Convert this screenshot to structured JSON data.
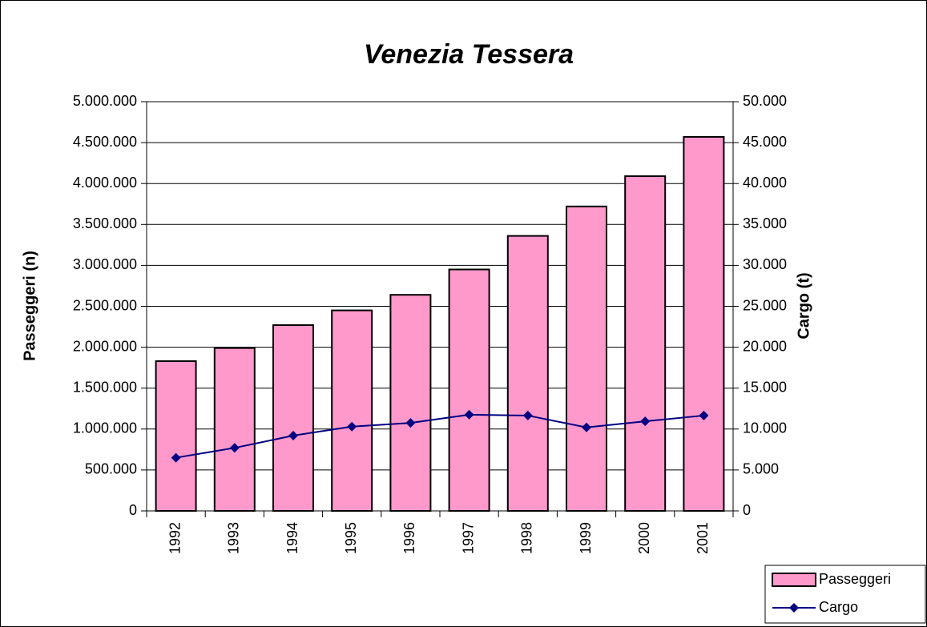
{
  "chart_data": {
    "type": "bar_line",
    "title": "Venezia Tessera",
    "y_label": "Passeggeri (n)",
    "y2_label": "Cargo (t)",
    "categories": [
      "1992",
      "1993",
      "1994",
      "1995",
      "1996",
      "1997",
      "1998",
      "1999",
      "2000",
      "2001"
    ],
    "series": [
      {
        "name": "Passeggeri",
        "type": "bar",
        "color": "#ff99cc",
        "values": [
          1830000,
          1990000,
          2270000,
          2450000,
          2640000,
          2950000,
          3360000,
          3720000,
          4090000,
          4570000
        ]
      },
      {
        "name": "Cargo",
        "type": "line",
        "axis": "y2",
        "color": "#000080",
        "values": [
          6500,
          7700,
          9200,
          10300,
          10750,
          11750,
          11650,
          10200,
          10950,
          11650
        ]
      }
    ],
    "ylim": [
      0,
      5000000
    ],
    "yticks": [
      0,
      {
        "value": 500000,
        "label": "500.000"
      },
      {
        "value": 1000000,
        "label": "1.000.000"
      },
      {
        "value": 1500000,
        "label": "1.500.000"
      },
      {
        "value": 2000000,
        "label": "2.000.000"
      },
      {
        "value": 2500000,
        "label": "2.500.000"
      },
      {
        "value": 3000000,
        "label": "3.000.000"
      },
      {
        "value": 3500000,
        "label": "3.500.000"
      },
      {
        "value": 4000000,
        "label": "4.000.000"
      },
      {
        "value": 4500000,
        "label": "4.500.000"
      },
      {
        "value": 5000000,
        "label": "5.000.000"
      }
    ],
    "y2lim": [
      0,
      50000
    ],
    "y2ticks": [
      0,
      {
        "value": 5000,
        "label": "5.000"
      },
      {
        "value": 10000,
        "label": "10.000"
      },
      {
        "value": 15000,
        "label": "15.000"
      },
      {
        "value": 20000,
        "label": "20.000"
      },
      {
        "value": 25000,
        "label": "25.000"
      },
      {
        "value": 30000,
        "label": "30.000"
      },
      {
        "value": 35000,
        "label": "35.000"
      },
      {
        "value": 40000,
        "label": "40.000"
      },
      {
        "value": 45000,
        "label": "45.000"
      },
      {
        "value": 50000,
        "label": "50.000"
      }
    ],
    "grid": true,
    "legend": "bottom-right"
  }
}
